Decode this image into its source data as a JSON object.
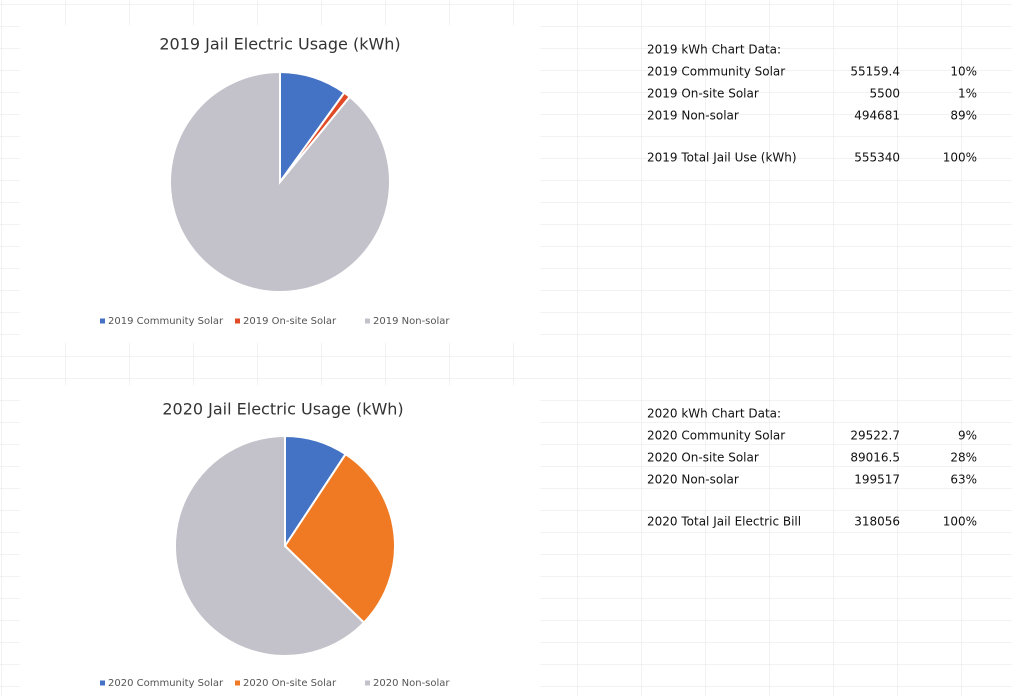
{
  "chart_data": [
    {
      "type": "pie",
      "title": "2019 Jail Electric Usage (kWh)",
      "series": [
        {
          "name": "2019 Community Solar",
          "color": "#4472c4",
          "values": [
            55159.4
          ]
        },
        {
          "name": "2019 On-site Solar",
          "color": "#e04a26",
          "values": [
            5500
          ]
        },
        {
          "name": "2019 Non-solar",
          "color": "#c3c1c9",
          "values": [
            494681
          ]
        }
      ]
    },
    {
      "type": "pie",
      "title": "2020 Jail Electric Usage (kWh)",
      "series": [
        {
          "name": "2020 Community Solar",
          "color": "#4472c4",
          "values": [
            29522.7
          ]
        },
        {
          "name": "2020 On-site Solar",
          "color": "#f07a24",
          "values": [
            89016.5
          ]
        },
        {
          "name": "2020 Non-solar",
          "color": "#c3c1c9",
          "values": [
            199517
          ]
        }
      ]
    }
  ],
  "tables": [
    {
      "title": "2019 kWh Chart Data:",
      "rows": [
        [
          "2019 Community Solar",
          "55159.4",
          "10%"
        ],
        [
          "2019 On-site Solar",
          "5500",
          "1%"
        ],
        [
          "2019 Non-solar",
          "494681",
          "89%"
        ]
      ],
      "total": [
        "2019 Total Jail Use (kWh)",
        "555340",
        "100%"
      ]
    },
    {
      "title": "2020 kWh Chart Data:",
      "rows": [
        [
          "2020 Community Solar",
          "29522.7",
          "9%"
        ],
        [
          "2020 On-site Solar",
          "89016.5",
          "28%"
        ],
        [
          "2020 Non-solar",
          "199517",
          "63%"
        ]
      ],
      "total": [
        "2020 Total Jail Electric Bill",
        "318056",
        "100%"
      ]
    }
  ]
}
